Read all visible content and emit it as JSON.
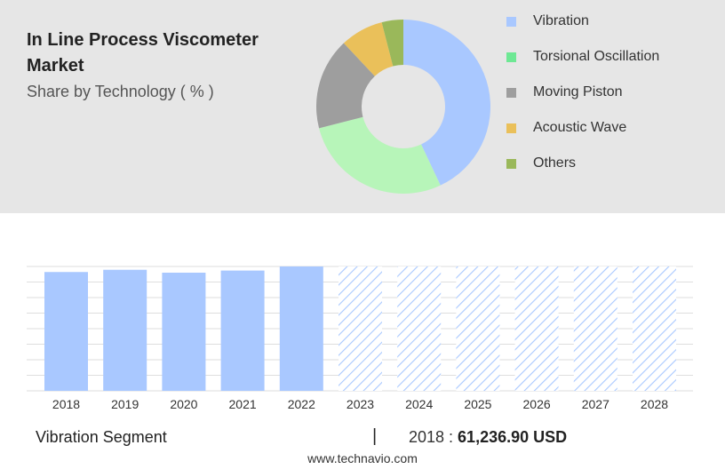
{
  "header": {
    "title": "In Line Process Viscometer Market",
    "subtitle": "Share by Technology ( % )"
  },
  "chart_data": [
    {
      "type": "pie",
      "style": "donut",
      "categories": [
        "Vibration",
        "Torsional Oscillation",
        "Moving Piston",
        "Acoustic Wave",
        "Others"
      ],
      "values": [
        43,
        28,
        17,
        8,
        4
      ],
      "colors": [
        "#a9c8ff",
        "#b7f5b9",
        "#9e9e9e",
        "#eac05a",
        "#9ab85a"
      ],
      "legend_colors": [
        "#a9c8ff",
        "#6ee894",
        "#9e9e9e",
        "#eac05a",
        "#9ab85a"
      ],
      "legend_position": "right"
    },
    {
      "type": "bar",
      "categories": [
        "2018",
        "2019",
        "2020",
        "2021",
        "2022",
        "2023",
        "2024",
        "2025",
        "2026",
        "2027",
        "2028"
      ],
      "values": [
        61236.9,
        62400,
        60900,
        62000,
        64100,
        64100,
        64100,
        64100,
        64100,
        64100,
        64100
      ],
      "forecast_from": "2023",
      "bar_color": "#a9c8ff",
      "forecast_pattern": "diagonal-hatch",
      "ylim": [
        0,
        64100
      ],
      "grid": true
    }
  ],
  "footer": {
    "segment_label": "Vibration Segment",
    "separator": "|",
    "year_prefix": "2018 : ",
    "value": "61,236.90 USD"
  },
  "source": "www.technavio.com"
}
